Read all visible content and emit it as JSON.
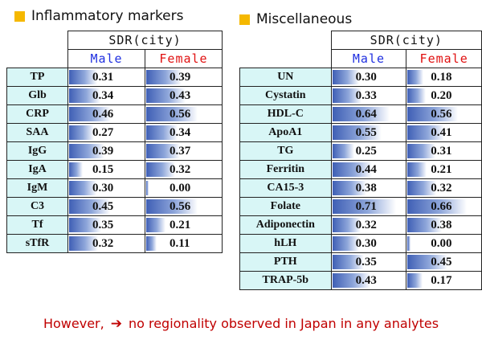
{
  "header_sdr": "SDR(city)",
  "header_male": "Male",
  "header_female": "Female",
  "male_color": "#1f2fe0",
  "female_color": "#e01010",
  "bar_max_value": 0.75,
  "left": {
    "title": "Inflammatory markers",
    "rows": [
      {
        "name": "TP",
        "male": "0.31",
        "female": "0.39"
      },
      {
        "name": "Glb",
        "male": "0.34",
        "female": "0.43"
      },
      {
        "name": "CRP",
        "male": "0.46",
        "female": "0.56"
      },
      {
        "name": "SAA",
        "male": "0.27",
        "female": "0.34"
      },
      {
        "name": "IgG",
        "male": "0.39",
        "female": "0.37"
      },
      {
        "name": "IgA",
        "male": "0.15",
        "female": "0.32"
      },
      {
        "name": "IgM",
        "male": "0.30",
        "female": "0.00"
      },
      {
        "name": "C3",
        "male": "0.45",
        "female": "0.56"
      },
      {
        "name": "Tf",
        "male": "0.35",
        "female": "0.21"
      },
      {
        "name": "sTfR",
        "male": "0.32",
        "female": "0.11"
      }
    ]
  },
  "right": {
    "title": "Miscellaneous",
    "rows": [
      {
        "name": "UN",
        "male": "0.30",
        "female": "0.18"
      },
      {
        "name": "Cystatin",
        "male": "0.33",
        "female": "0.20"
      },
      {
        "name": "HDL-C",
        "male": "0.64",
        "female": "0.56"
      },
      {
        "name": "ApoA1",
        "male": "0.55",
        "female": "0.41"
      },
      {
        "name": "TG",
        "male": "0.25",
        "female": "0.31"
      },
      {
        "name": "Ferritin",
        "male": "0.44",
        "female": "0.21"
      },
      {
        "name": "CA15-3",
        "male": "0.38",
        "female": "0.32"
      },
      {
        "name": "Folate",
        "male": "0.71",
        "female": "0.66"
      },
      {
        "name": "Adiponectin",
        "male": "0.32",
        "female": "0.38"
      },
      {
        "name": "hLH",
        "male": "0.30",
        "female": "0.00"
      },
      {
        "name": "PTH",
        "male": "0.35",
        "female": "0.45"
      },
      {
        "name": "TRAP-5b",
        "male": "0.43",
        "female": "0.17"
      }
    ]
  },
  "footer": {
    "prefix": "However,",
    "arrow": "➔",
    "text": "no regionality observed in Japan in any analytes"
  }
}
